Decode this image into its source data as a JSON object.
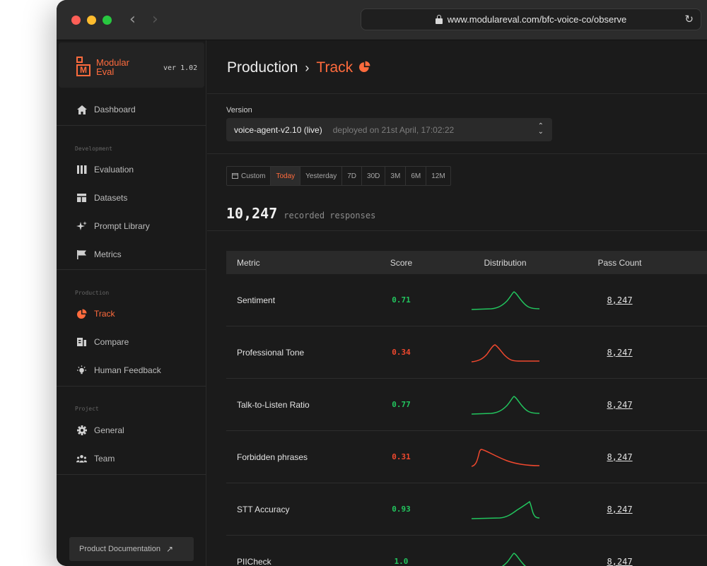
{
  "browser": {
    "url": "www.modulareval.com/bfc-voice-co/observe"
  },
  "brand": {
    "logo_letter": "M",
    "name_line1": "Modular",
    "name_line2": "Eval",
    "version": "ver 1.02",
    "accent_color": "#ff6b3d"
  },
  "sidebar": {
    "dashboard": "Dashboard",
    "sections": [
      {
        "label": "Development",
        "items": [
          "Evaluation",
          "Datasets",
          "Prompt Library",
          "Metrics"
        ]
      },
      {
        "label": "Production",
        "items": [
          "Track",
          "Compare",
          "Human Feedback"
        ]
      },
      {
        "label": "Project",
        "items": [
          "General",
          "Team"
        ]
      }
    ],
    "active_item": "Track",
    "docs_button": "Product Documentation"
  },
  "header": {
    "breadcrumb_parent": "Production",
    "breadcrumb_sep": "›",
    "breadcrumb_current": "Track"
  },
  "version": {
    "label": "Version",
    "selected": "voice-agent-v2.10 (live)",
    "deployed": "deployed on 21st April, 17:02:22"
  },
  "date_range": {
    "options": [
      "Custom",
      "Today",
      "Yesterday",
      "7D",
      "30D",
      "3M",
      "6M",
      "12M"
    ],
    "selected": "Today"
  },
  "summary": {
    "count": "10,247",
    "label": "recorded responses"
  },
  "table": {
    "columns": [
      "Metric",
      "Score",
      "Distribution",
      "Pass Count"
    ],
    "rows": [
      {
        "metric": "Sentiment",
        "score": "0.71",
        "status": "pass",
        "pass_count": "8,247"
      },
      {
        "metric": "Professional Tone",
        "score": "0.34",
        "status": "fail",
        "pass_count": "8,247"
      },
      {
        "metric": "Talk-to-Listen Ratio",
        "score": "0.77",
        "status": "pass",
        "pass_count": "8,247"
      },
      {
        "metric": "Forbidden phrases",
        "score": "0.31",
        "status": "fail",
        "pass_count": "8,247"
      },
      {
        "metric": "STT Accuracy",
        "score": "0.93",
        "status": "pass",
        "pass_count": "8,247"
      },
      {
        "metric": "PIICheck",
        "score": "1.0",
        "status": "pass",
        "pass_count": "8,247"
      }
    ]
  },
  "colors": {
    "pass": "#22c55e",
    "fail": "#f0482e"
  }
}
